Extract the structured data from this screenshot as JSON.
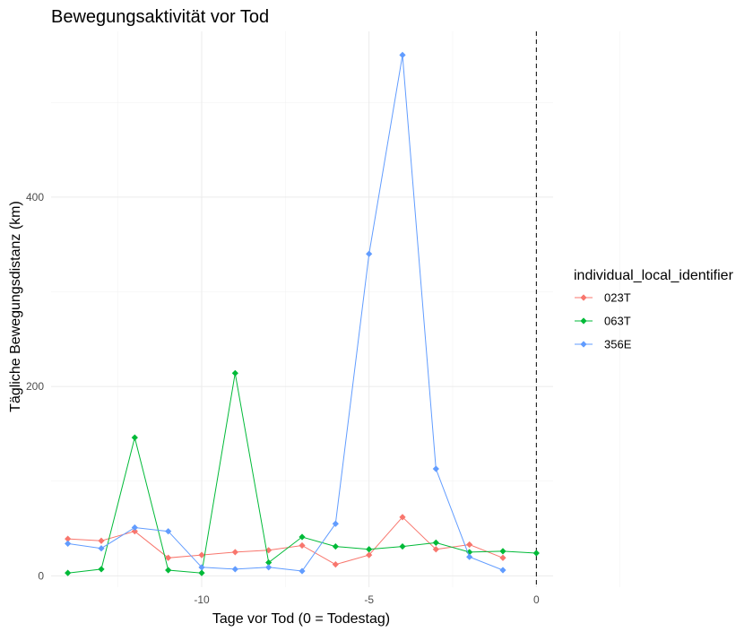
{
  "chart_data": {
    "type": "line",
    "title": "Bewegungsaktivität vor Tod",
    "xlabel": "Tage vor Tod (0 = Todestag)",
    "ylabel": "Tägliche Bewegungsdistanz (km)",
    "xlim": [
      -14.5,
      0.5
    ],
    "ylim": [
      -12,
      575
    ],
    "x_ticks": [
      -10,
      -5,
      0
    ],
    "x_tick_labels": [
      "-10",
      "-5",
      "0"
    ],
    "y_ticks": [
      0,
      200,
      400
    ],
    "y_tick_labels": [
      "0",
      "200",
      "400"
    ],
    "grid": true,
    "reference_line": {
      "x": 0,
      "style": "dashed"
    },
    "legend": {
      "title": "individual_local_identifier",
      "position": "right"
    },
    "series": [
      {
        "name": "023T",
        "color": "#F8766D",
        "x": [
          -14,
          -13,
          -12,
          -11,
          -10,
          -9,
          -8,
          -7,
          -6,
          -5,
          -4,
          -3,
          -2,
          -1
        ],
        "y": [
          39,
          37,
          47,
          19,
          22,
          25,
          27,
          32,
          12,
          22,
          62,
          28,
          33,
          19
        ]
      },
      {
        "name": "063T",
        "color": "#00BA38",
        "x": [
          -14,
          -13,
          -12,
          -11,
          -10,
          -9,
          -8,
          -7,
          -6,
          -5,
          -4,
          -3,
          -2,
          -1,
          0
        ],
        "y": [
          3,
          7,
          146,
          6,
          3,
          214,
          14,
          41,
          31,
          28,
          31,
          35,
          25,
          26,
          24
        ]
      },
      {
        "name": "356E",
        "color": "#619CFF",
        "x": [
          -14,
          -13,
          -12,
          -11,
          -10,
          -9,
          -8,
          -7,
          -6,
          -5,
          -4,
          -3,
          -2,
          -1
        ],
        "y": [
          34,
          29,
          51,
          47,
          9,
          7,
          9,
          5,
          55,
          340,
          550,
          113,
          20,
          6
        ]
      }
    ]
  }
}
